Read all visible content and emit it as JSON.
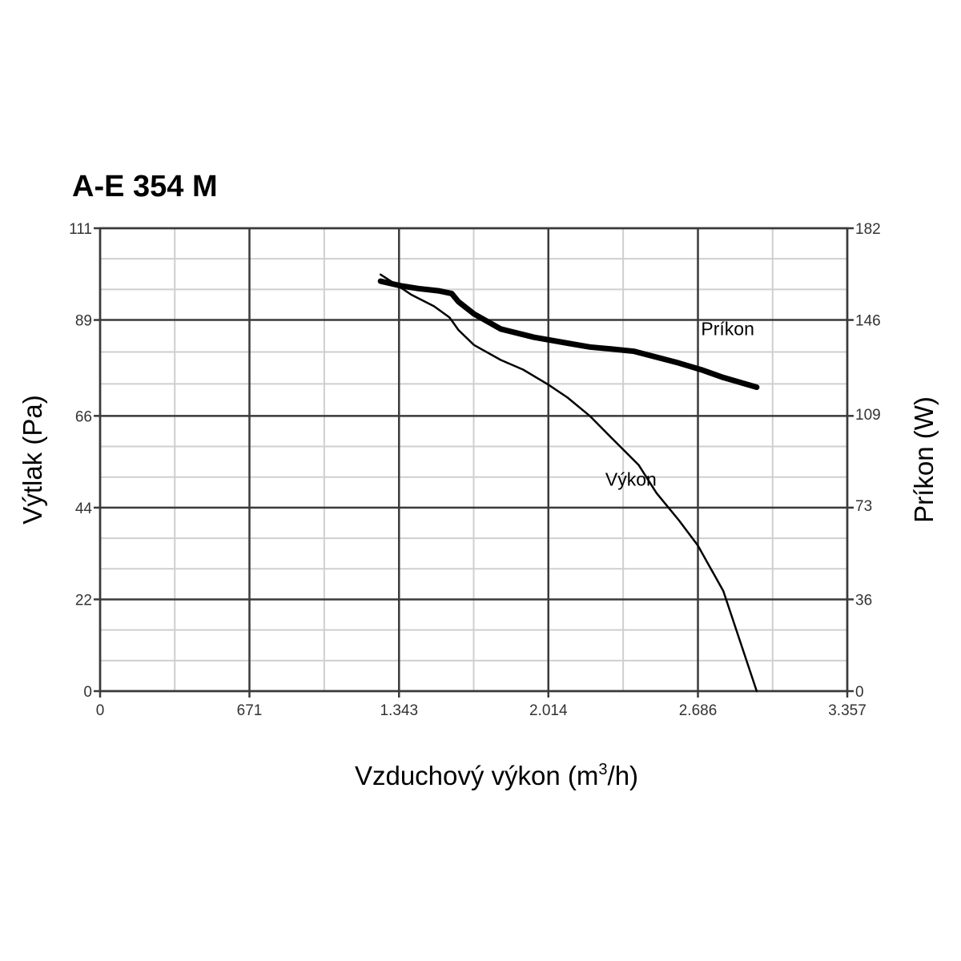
{
  "chart_data": {
    "type": "line",
    "title": "A-E 354 M",
    "xlabel": "Vzduchový výkon (m",
    "xlabel_sup": "3",
    "xlabel_tail": "/h)",
    "ylabel": "Výtlak (Pa)",
    "y2label": "Príkon (W)",
    "xlim": [
      0,
      3357
    ],
    "ylim": [
      0,
      111
    ],
    "y2lim": [
      0,
      182
    ],
    "x_ticks": [
      0,
      671,
      1343,
      2014,
      2686,
      3357
    ],
    "x_tick_labels": [
      "0",
      "671",
      "1.343",
      "2.014",
      "2.686",
      "3.357"
    ],
    "y_ticks": [
      0,
      22,
      44,
      66,
      89,
      111
    ],
    "y_tick_labels": [
      "0",
      "22",
      "44",
      "66",
      "89",
      "111"
    ],
    "y2_ticks": [
      0,
      36,
      73,
      109,
      146,
      182
    ],
    "y2_tick_labels": [
      "0",
      "36",
      "73",
      "109",
      "146",
      "182"
    ],
    "grid": true,
    "series": [
      {
        "name": "Výkon",
        "axis": "left",
        "stroke_width": 2.5,
        "x": [
          1260,
          1330,
          1400,
          1500,
          1570,
          1610,
          1680,
          1800,
          1900,
          2014,
          2100,
          2200,
          2300,
          2420,
          2500,
          2600,
          2686,
          2800,
          2950
        ],
        "y": [
          99.9,
          97.5,
          95.0,
          92.3,
          89.6,
          86.6,
          83.0,
          79.4,
          77.1,
          73.5,
          70.4,
          66.0,
          60.6,
          54.2,
          47.5,
          41.0,
          34.9,
          24.0,
          0
        ]
      },
      {
        "name": "Príkon",
        "axis": "right",
        "stroke_width": 7,
        "x": [
          1260,
          1350,
          1430,
          1520,
          1580,
          1610,
          1680,
          1800,
          1950,
          2100,
          2200,
          2300,
          2400,
          2500,
          2600,
          2700,
          2800,
          2950
        ],
        "y": [
          161.2,
          159.4,
          158.3,
          157.4,
          156.3,
          153.1,
          148.3,
          142.4,
          139.1,
          136.8,
          135.3,
          134.5,
          133.6,
          131.3,
          129.0,
          126.4,
          123.3,
          119.5
        ]
      }
    ],
    "annotations": [
      {
        "text": "Príkon",
        "x": 2700,
        "y": 85.4
      },
      {
        "text": "Výkon",
        "x": 2270,
        "y": 49.3
      }
    ]
  }
}
